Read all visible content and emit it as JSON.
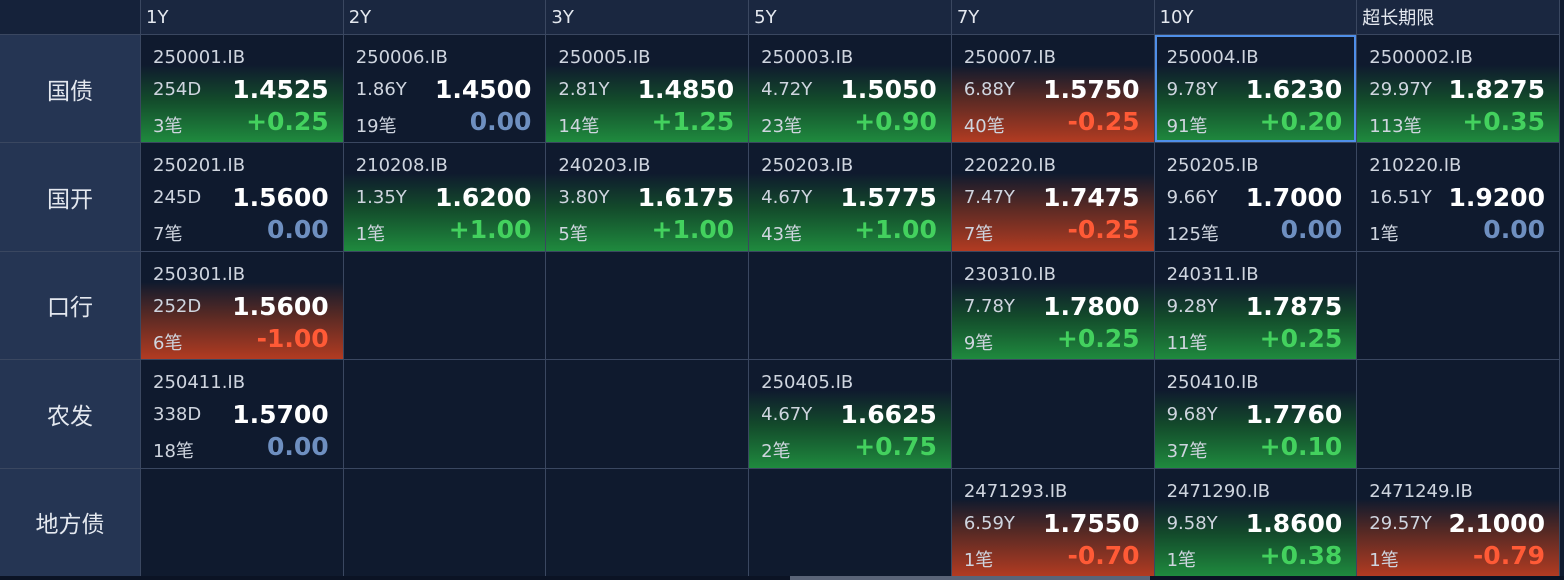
{
  "columns": [
    "1Y",
    "2Y",
    "3Y",
    "5Y",
    "7Y",
    "10Y",
    "超长期限"
  ],
  "rows": [
    {
      "label": "国债",
      "cells": [
        {
          "code": "250001.IB",
          "term": "254D",
          "yield": "1.4525",
          "count": "3笔",
          "change": "+0.25",
          "trend": "up"
        },
        {
          "code": "250006.IB",
          "term": "1.86Y",
          "yield": "1.4500",
          "count": "19笔",
          "change": "0.00",
          "trend": "flat"
        },
        {
          "code": "250005.IB",
          "term": "2.81Y",
          "yield": "1.4850",
          "count": "14笔",
          "change": "+1.25",
          "trend": "up"
        },
        {
          "code": "250003.IB",
          "term": "4.72Y",
          "yield": "1.5050",
          "count": "23笔",
          "change": "+0.90",
          "trend": "up"
        },
        {
          "code": "250007.IB",
          "term": "6.88Y",
          "yield": "1.5750",
          "count": "40笔",
          "change": "-0.25",
          "trend": "down"
        },
        {
          "code": "250004.IB",
          "term": "9.78Y",
          "yield": "1.6230",
          "count": "91笔",
          "change": "+0.20",
          "trend": "up",
          "selected": true
        },
        {
          "code": "2500002.IB",
          "term": "29.97Y",
          "yield": "1.8275",
          "count": "113笔",
          "change": "+0.35",
          "trend": "up"
        }
      ]
    },
    {
      "label": "国开",
      "cells": [
        {
          "code": "250201.IB",
          "term": "245D",
          "yield": "1.5600",
          "count": "7笔",
          "change": "0.00",
          "trend": "flat"
        },
        {
          "code": "210208.IB",
          "term": "1.35Y",
          "yield": "1.6200",
          "count": "1笔",
          "change": "+1.00",
          "trend": "up"
        },
        {
          "code": "240203.IB",
          "term": "3.80Y",
          "yield": "1.6175",
          "count": "5笔",
          "change": "+1.00",
          "trend": "up"
        },
        {
          "code": "250203.IB",
          "term": "4.67Y",
          "yield": "1.5775",
          "count": "43笔",
          "change": "+1.00",
          "trend": "up"
        },
        {
          "code": "220220.IB",
          "term": "7.47Y",
          "yield": "1.7475",
          "count": "7笔",
          "change": "-0.25",
          "trend": "down"
        },
        {
          "code": "250205.IB",
          "term": "9.66Y",
          "yield": "1.7000",
          "count": "125笔",
          "change": "0.00",
          "trend": "flat"
        },
        {
          "code": "210220.IB",
          "term": "16.51Y",
          "yield": "1.9200",
          "count": "1笔",
          "change": "0.00",
          "trend": "flat"
        }
      ]
    },
    {
      "label": "口行",
      "cells": [
        {
          "code": "250301.IB",
          "term": "252D",
          "yield": "1.5600",
          "count": "6笔",
          "change": "-1.00",
          "trend": "down"
        },
        null,
        null,
        null,
        {
          "code": "230310.IB",
          "term": "7.78Y",
          "yield": "1.7800",
          "count": "9笔",
          "change": "+0.25",
          "trend": "up"
        },
        {
          "code": "240311.IB",
          "term": "9.28Y",
          "yield": "1.7875",
          "count": "11笔",
          "change": "+0.25",
          "trend": "up"
        },
        null
      ]
    },
    {
      "label": "农发",
      "cells": [
        {
          "code": "250411.IB",
          "term": "338D",
          "yield": "1.5700",
          "count": "18笔",
          "change": "0.00",
          "trend": "flat"
        },
        null,
        null,
        {
          "code": "250405.IB",
          "term": "4.67Y",
          "yield": "1.6625",
          "count": "2笔",
          "change": "+0.75",
          "trend": "up"
        },
        null,
        {
          "code": "250410.IB",
          "term": "9.68Y",
          "yield": "1.7760",
          "count": "37笔",
          "change": "+0.10",
          "trend": "up"
        },
        null
      ]
    },
    {
      "label": "地方债",
      "cells": [
        null,
        null,
        null,
        null,
        {
          "code": "2471293.IB",
          "term": "6.59Y",
          "yield": "1.7550",
          "count": "1笔",
          "change": "-0.70",
          "trend": "down"
        },
        {
          "code": "2471290.IB",
          "term": "9.58Y",
          "yield": "1.8600",
          "count": "1笔",
          "change": "+0.38",
          "trend": "up"
        },
        {
          "code": "2471249.IB",
          "term": "29.57Y",
          "yield": "2.1000",
          "count": "1笔",
          "change": "-0.79",
          "trend": "down"
        }
      ]
    }
  ],
  "colors": {
    "up": "#43d15e",
    "down": "#ff5a36",
    "flat": "#6e8fc0",
    "selected_border": "#4f8fe8"
  }
}
